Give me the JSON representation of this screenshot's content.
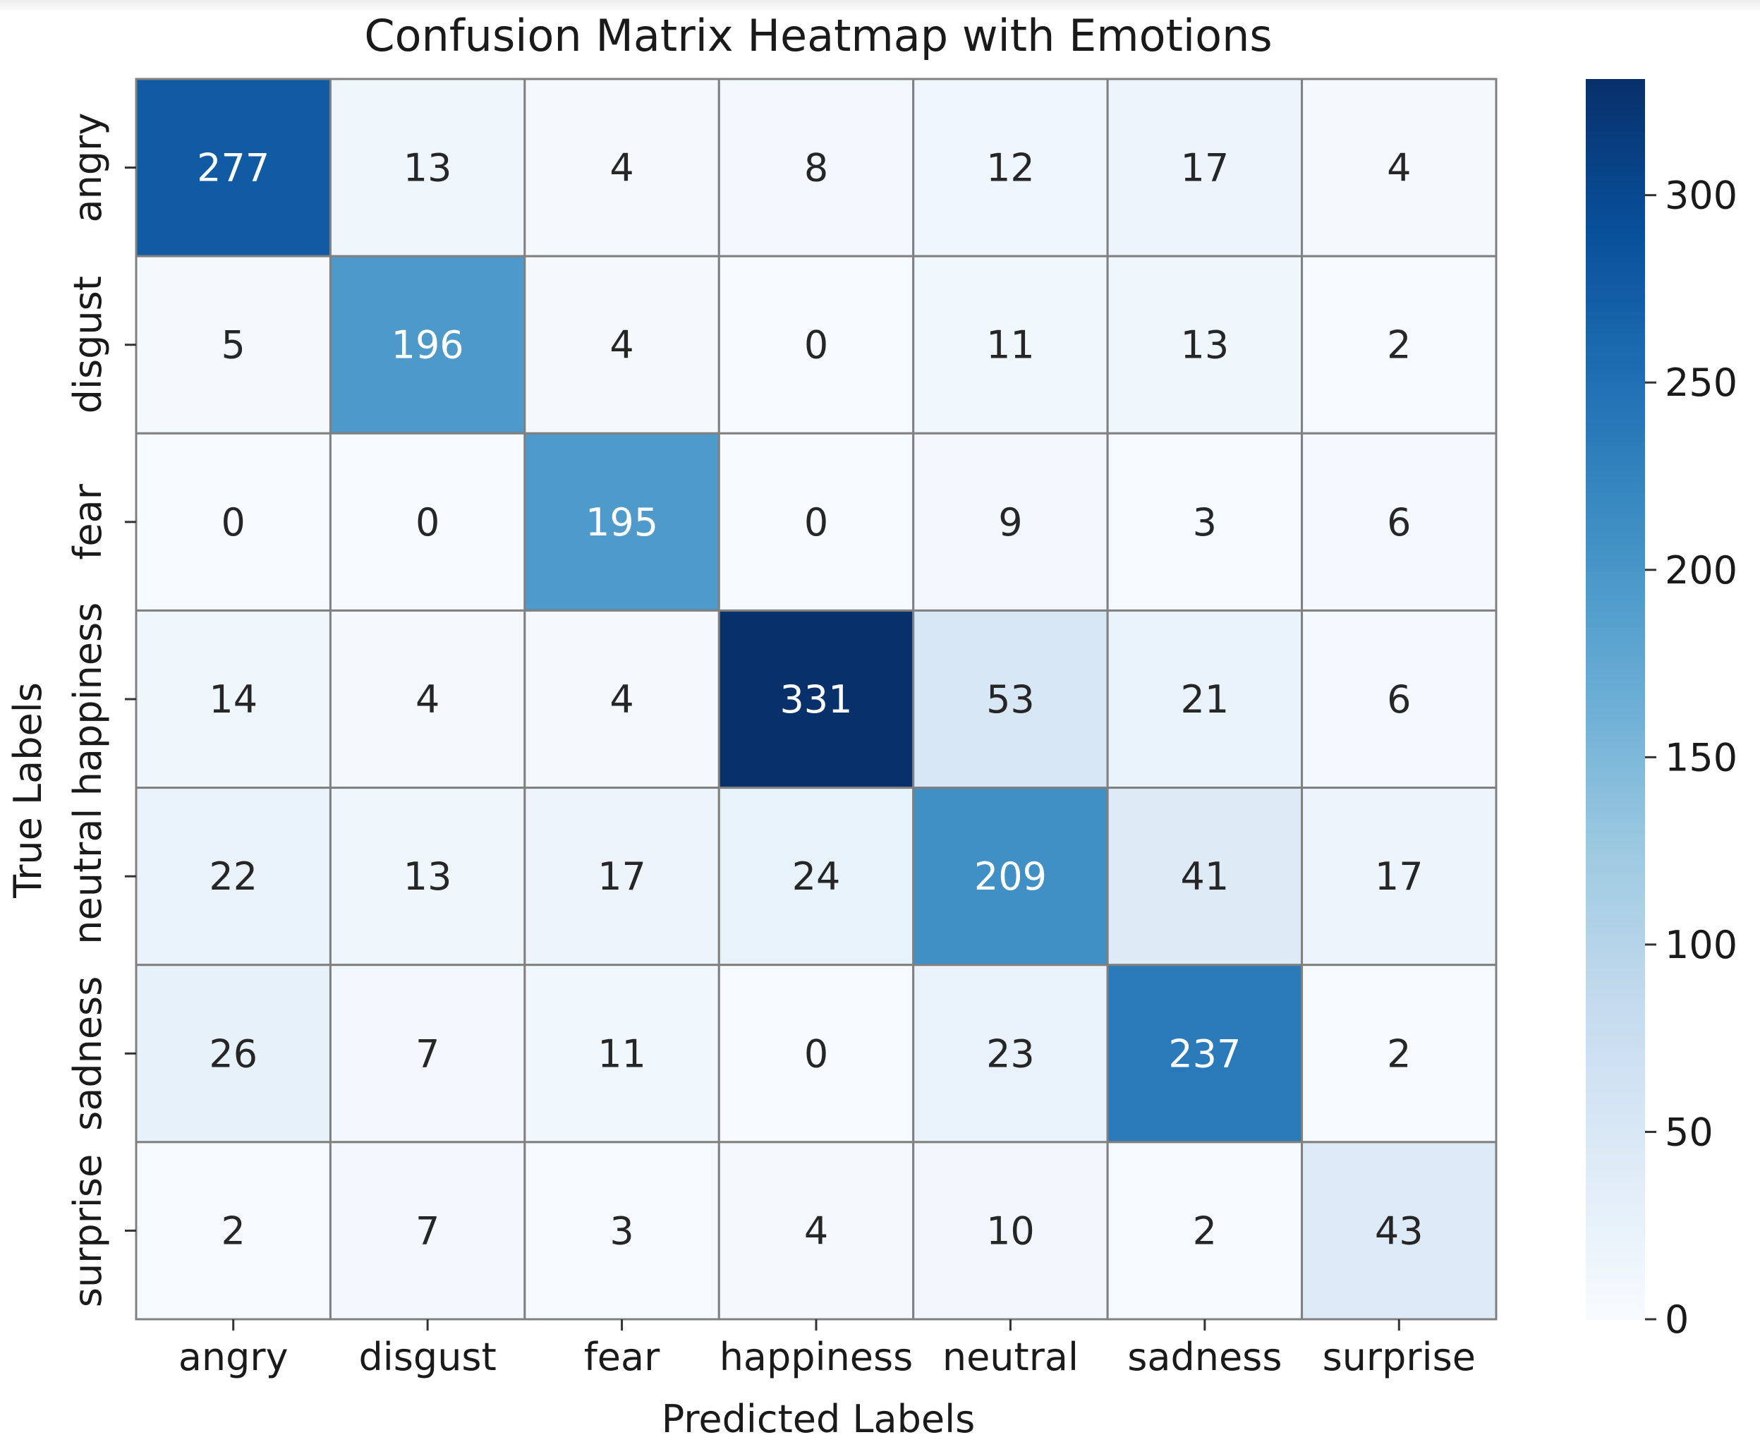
{
  "chart_data": {
    "type": "heatmap",
    "title": "Confusion Matrix Heatmap with Emotions",
    "xlabel": "Predicted Labels",
    "ylabel": "True Labels",
    "x_categories": [
      "angry",
      "disgust",
      "fear",
      "happiness",
      "neutral",
      "sadness",
      "surprise"
    ],
    "y_categories": [
      "angry",
      "disgust",
      "fear",
      "happiness",
      "neutral",
      "sadness",
      "surprise"
    ],
    "values": [
      [
        277,
        13,
        4,
        8,
        12,
        17,
        4
      ],
      [
        5,
        196,
        4,
        0,
        11,
        13,
        2
      ],
      [
        0,
        0,
        195,
        0,
        9,
        3,
        6
      ],
      [
        14,
        4,
        4,
        331,
        53,
        21,
        6
      ],
      [
        22,
        13,
        17,
        24,
        209,
        41,
        17
      ],
      [
        26,
        7,
        11,
        0,
        23,
        237,
        2
      ],
      [
        2,
        7,
        3,
        4,
        10,
        2,
        43
      ]
    ],
    "colormap": "Blues",
    "color_range": [
      0,
      331
    ],
    "colorbar_ticks": [
      0,
      50,
      100,
      150,
      200,
      250,
      300
    ],
    "annotations": true,
    "cell_border_color": "#808080"
  }
}
